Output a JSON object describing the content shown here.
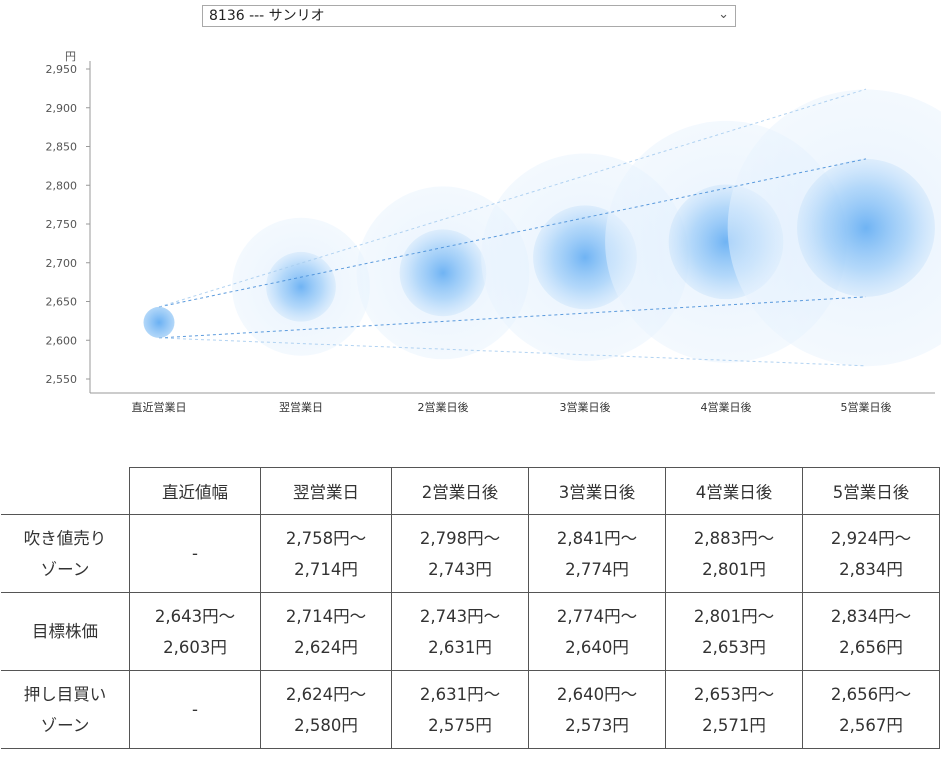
{
  "stock_select": {
    "value": "8136 --- サンリオ",
    "icon": "chevron-down-icon"
  },
  "chart_data": {
    "type": "scatter",
    "y_unit": "円",
    "ylim": [
      2550,
      2950
    ],
    "y_ticks": [
      "2,950",
      "2,900",
      "2,850",
      "2,800",
      "2,750",
      "2,700",
      "2,650",
      "2,600",
      "2,550"
    ],
    "categories": [
      "直近営業日",
      "翌営業日",
      "2営業日後",
      "3営業日後",
      "4営業日後",
      "5営業日後"
    ],
    "target_center": [
      2623,
      2669,
      2687,
      2707,
      2727,
      2745
    ],
    "target_upper": [
      2643,
      2714,
      2743,
      2774,
      2801,
      2834
    ],
    "target_lower": [
      2603,
      2624,
      2631,
      2640,
      2653,
      2656
    ],
    "outer_upper": [
      2643,
      2758,
      2798,
      2841,
      2883,
      2924
    ],
    "outer_lower": [
      2603,
      2580,
      2575,
      2573,
      2571,
      2567
    ],
    "colors": {
      "bubble": "#4a9df0",
      "line": "#4a90d9"
    }
  },
  "table": {
    "headers": [
      "",
      "直近値幅",
      "翌営業日",
      "2営業日後",
      "3営業日後",
      "4営業日後",
      "5営業日後"
    ],
    "rows": [
      {
        "label": [
          "吹き値売り",
          "ゾーン"
        ],
        "cells": [
          [
            "-"
          ],
          [
            "2,758円～",
            "2,714円"
          ],
          [
            "2,798円～",
            "2,743円"
          ],
          [
            "2,841円～",
            "2,774円"
          ],
          [
            "2,883円～",
            "2,801円"
          ],
          [
            "2,924円～",
            "2,834円"
          ]
        ]
      },
      {
        "label": [
          "目標株価"
        ],
        "cells": [
          [
            "2,643円～",
            "2,603円"
          ],
          [
            "2,714円～",
            "2,624円"
          ],
          [
            "2,743円～",
            "2,631円"
          ],
          [
            "2,774円～",
            "2,640円"
          ],
          [
            "2,801円～",
            "2,653円"
          ],
          [
            "2,834円～",
            "2,656円"
          ]
        ]
      },
      {
        "label": [
          "押し目買い",
          "ゾーン"
        ],
        "cells": [
          [
            "-"
          ],
          [
            "2,624円～",
            "2,580円"
          ],
          [
            "2,631円～",
            "2,575円"
          ],
          [
            "2,640円～",
            "2,573円"
          ],
          [
            "2,653円～",
            "2,571円"
          ],
          [
            "2,656円～",
            "2,567円"
          ]
        ]
      }
    ]
  }
}
